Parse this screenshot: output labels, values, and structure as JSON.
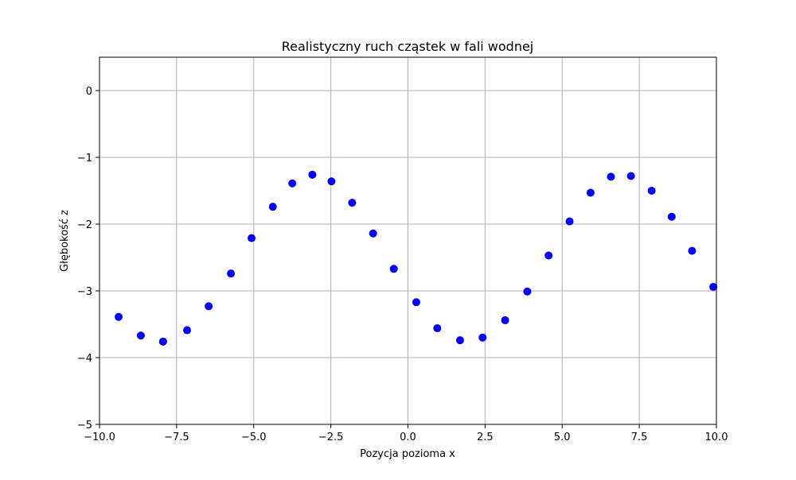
{
  "chart_data": {
    "type": "scatter",
    "title": "Realistyczny ruch cząstek w fali wodnej",
    "xlabel": "Pozycja pozioma x",
    "ylabel": "Głębokość z",
    "xlim": [
      -10,
      10
    ],
    "ylim": [
      -5,
      0.5
    ],
    "grid": true,
    "marker_color": "#0000ff",
    "grid_color": "#b0b0b0",
    "x_ticks": [
      {
        "value": -10,
        "label": "−10.0"
      },
      {
        "value": -7.5,
        "label": "−7.5"
      },
      {
        "value": -5,
        "label": "−5.0"
      },
      {
        "value": -2.5,
        "label": "−2.5"
      },
      {
        "value": 0,
        "label": "0.0"
      },
      {
        "value": 2.5,
        "label": "2.5"
      },
      {
        "value": 5,
        "label": "5.0"
      },
      {
        "value": 7.5,
        "label": "7.5"
      },
      {
        "value": 10,
        "label": "10.0"
      }
    ],
    "y_ticks": [
      {
        "value": 0,
        "label": "0"
      },
      {
        "value": -1,
        "label": "−1"
      },
      {
        "value": -2,
        "label": "−2"
      },
      {
        "value": -3,
        "label": "−3"
      },
      {
        "value": -4,
        "label": "−4"
      },
      {
        "value": -5,
        "label": "−5"
      }
    ],
    "series": [
      {
        "x": [
          -9.38,
          -8.66,
          -7.94,
          -7.16,
          -6.46,
          -5.74,
          -5.07,
          -4.38,
          -3.75,
          -3.1,
          -2.48,
          -1.81,
          -1.13,
          -0.46,
          0.27,
          0.95,
          1.69,
          2.42,
          3.15,
          3.87,
          4.56,
          5.24,
          5.92,
          6.58,
          7.23,
          7.9,
          8.55,
          9.21,
          9.9
        ],
        "y": [
          -3.39,
          -3.67,
          -3.76,
          -3.59,
          -3.23,
          -2.74,
          -2.21,
          -1.74,
          -1.39,
          -1.26,
          -1.36,
          -1.68,
          -2.14,
          -2.67,
          -3.17,
          -3.56,
          -3.74,
          -3.7,
          -3.44,
          -3.01,
          -2.47,
          -1.96,
          -1.53,
          -1.29,
          -1.28,
          -1.5,
          -1.89,
          -2.4,
          -2.94
        ]
      }
    ]
  }
}
